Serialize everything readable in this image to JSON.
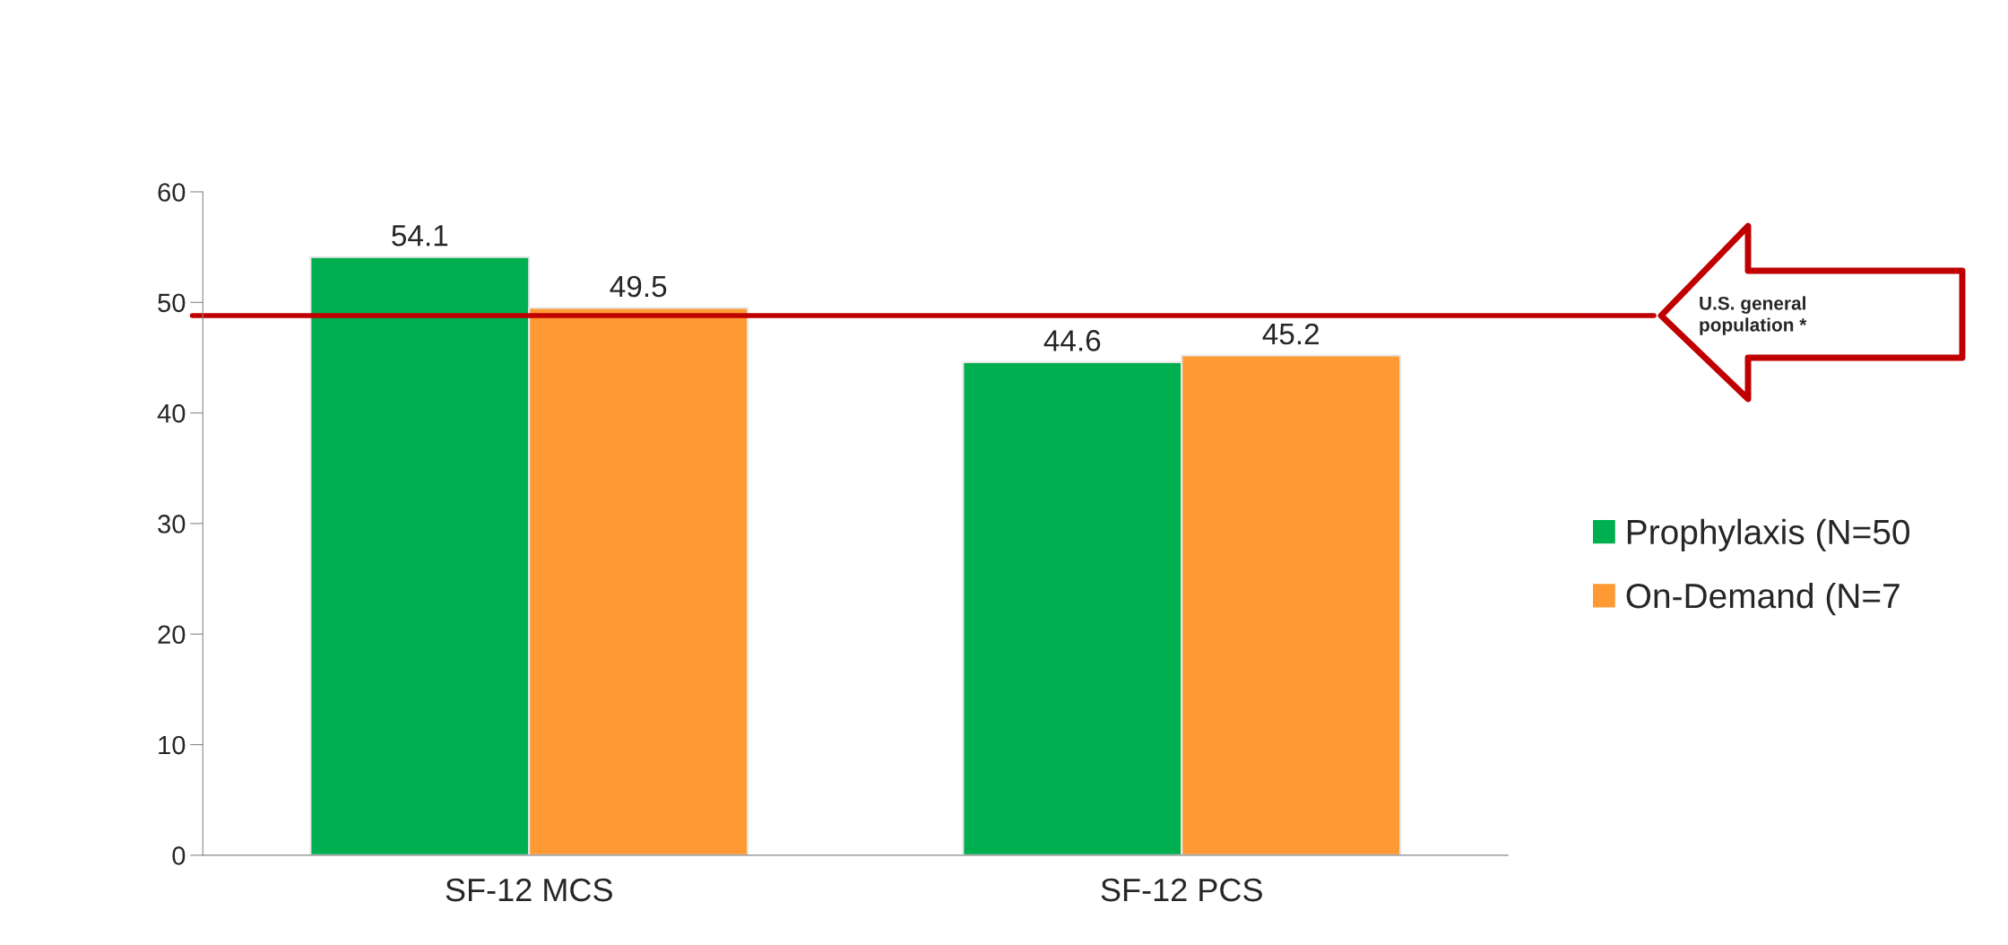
{
  "chart_data": {
    "type": "bar",
    "categories": [
      "SF-12 MCS",
      "SF-12 PCS"
    ],
    "series": [
      {
        "name": "Prophylaxis (N=50",
        "color": "#00b050",
        "values": [
          54.1,
          44.6
        ]
      },
      {
        "name": "On-Demand (N=7",
        "color": "#ff9933",
        "values": [
          49.5,
          45.2
        ]
      }
    ],
    "ylim": [
      0,
      60
    ],
    "yticks": [
      0,
      10,
      20,
      30,
      40,
      50,
      60
    ],
    "grid": false,
    "legend": "right",
    "data_labels": true,
    "ref_lines": [
      {
        "axis": "y",
        "value": 48.8,
        "label": "U.S. general\npopulation *",
        "color": "#c00000"
      }
    ]
  }
}
